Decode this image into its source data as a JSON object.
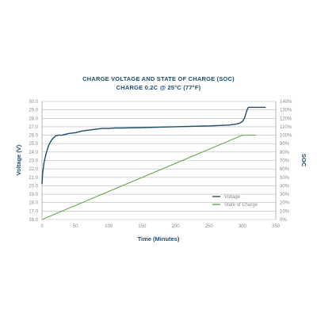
{
  "chart_data": {
    "type": "line",
    "title": "CHARGE VOLTAGE AND STATE OF CHARGE (SOC)",
    "subtitle": "CHARGE 0.2C @ 25°C (77°F)",
    "xlabel": "Time (Minutes)",
    "ylabel_left": "Voltage (V)",
    "ylabel_right": "SOC",
    "xlim": [
      0,
      350
    ],
    "x_ticks": [
      "0",
      "50",
      "100",
      "150",
      "200",
      "250",
      "300",
      "350"
    ],
    "ylim_left": [
      16.0,
      30.0
    ],
    "y_ticks_left": [
      "16.0",
      "17.0",
      "18.0",
      "19.0",
      "20.0",
      "21.0",
      "22.0",
      "23.0",
      "24.0",
      "25.0",
      "26.0",
      "27.0",
      "28.0",
      "29.0",
      "30.0"
    ],
    "ylim_right": [
      0,
      140
    ],
    "y_ticks_right": [
      "0%",
      "10%",
      "20%",
      "30%",
      "40%",
      "50%",
      "60%",
      "70%",
      "80%",
      "90%",
      "100%",
      "110%",
      "120%",
      "130%",
      "140%"
    ],
    "grid": true,
    "legend_position": "bottom-right",
    "series": [
      {
        "name": "Voltage",
        "axis": "left",
        "color": "#1e4d6b",
        "x": [
          0,
          1,
          3,
          6,
          10,
          15,
          20,
          25,
          30,
          40,
          50,
          60,
          70,
          80,
          90,
          100,
          110,
          120,
          150,
          200,
          250,
          280,
          290,
          295,
          300,
          303,
          305,
          307,
          309,
          312,
          320,
          330,
          335
        ],
        "y": [
          20.2,
          21.5,
          22.7,
          23.8,
          24.8,
          25.5,
          25.9,
          26.0,
          26.0,
          26.2,
          26.3,
          26.5,
          26.6,
          26.7,
          26.8,
          26.8,
          26.85,
          26.85,
          26.9,
          27.0,
          27.1,
          27.2,
          27.3,
          27.4,
          27.6,
          28.0,
          28.5,
          29.0,
          29.3,
          29.3,
          29.3,
          29.3,
          29.3
        ]
      },
      {
        "name": "State of Charge",
        "axis": "right",
        "color": "#6aa84f",
        "x": [
          0,
          300,
          310,
          320
        ],
        "y": [
          0,
          100,
          100,
          100
        ]
      }
    ]
  }
}
